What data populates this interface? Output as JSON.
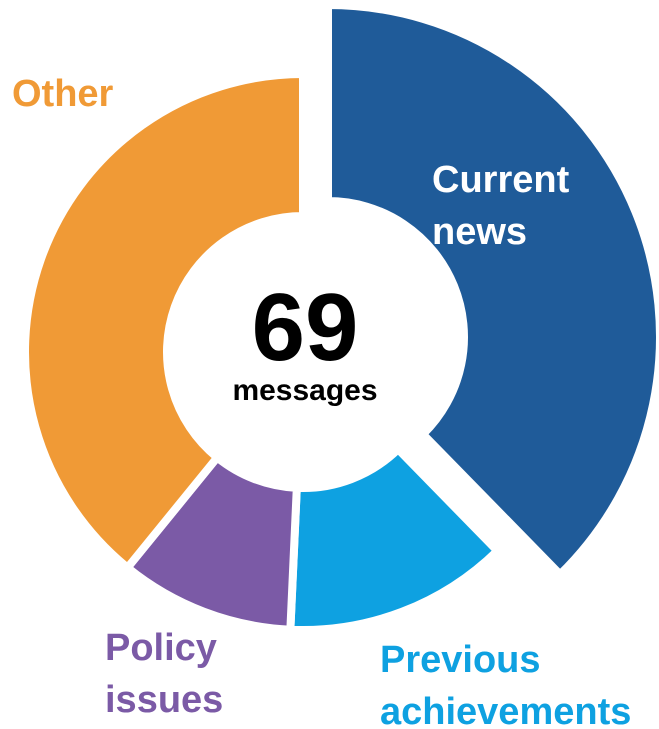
{
  "chart_data": {
    "type": "donut",
    "categories": [
      "Current news",
      "Previous achievements",
      "Policy issues",
      "Other"
    ],
    "values": [
      26,
      9,
      7,
      27
    ],
    "colors": [
      "#1f5b99",
      "#0ea1e1",
      "#7b5aa6",
      "#f09a36"
    ],
    "explode": [
      true,
      false,
      false,
      false
    ],
    "total": 69,
    "total_label": "messages"
  }
}
